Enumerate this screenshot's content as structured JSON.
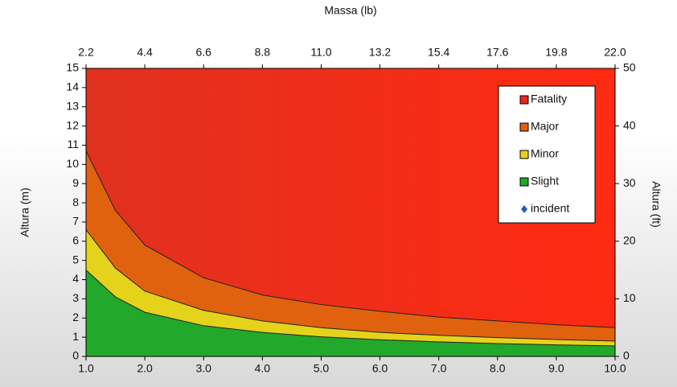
{
  "chart_data": {
    "type": "area",
    "title": "Massa (lb)",
    "y_label": "Altura (m)",
    "y2_label": "Altura (ft)",
    "x": [
      1,
      1.5,
      2,
      3,
      4,
      5,
      6,
      7,
      8,
      9,
      10
    ],
    "xlim": [
      1,
      10
    ],
    "xticks": [
      {
        "value": 1,
        "label": "1.0"
      },
      {
        "value": 2,
        "label": "2.0"
      },
      {
        "value": 3,
        "label": "3.0"
      },
      {
        "value": 4,
        "label": "4.0"
      },
      {
        "value": 5,
        "label": "5.0"
      },
      {
        "value": 6,
        "label": "6.0"
      },
      {
        "value": 7,
        "label": "7.0"
      },
      {
        "value": 8,
        "label": "8.0"
      },
      {
        "value": 9,
        "label": "9.0"
      },
      {
        "value": 10,
        "label": "10.0"
      }
    ],
    "x2lim": [
      2.2,
      22
    ],
    "x2ticks": [
      2.2,
      4.4,
      6.6,
      8.8,
      {
        "value": 11,
        "label": "11.0"
      },
      13.2,
      15.4,
      17.6,
      19.8,
      {
        "value": 22,
        "label": "22.0"
      }
    ],
    "ylim": [
      0,
      15
    ],
    "yticks": [
      0,
      1,
      2,
      3,
      4,
      5,
      6,
      7,
      8,
      9,
      10,
      11,
      12,
      13,
      14,
      15
    ],
    "y2lim": [
      0,
      50
    ],
    "y2ticks": [
      0,
      10,
      20,
      30,
      40,
      50
    ],
    "series": [
      {
        "name": "Fatality",
        "color": "#e8291c"
      },
      {
        "name": "Major",
        "color": "#e0620f",
        "values": [
          10.7,
          7.6,
          5.8,
          4.1,
          3.2,
          2.7,
          2.35,
          2.05,
          1.85,
          1.65,
          1.5
        ]
      },
      {
        "name": "Minor",
        "color": "#e4d31a",
        "values": [
          6.6,
          4.6,
          3.4,
          2.4,
          1.85,
          1.5,
          1.25,
          1.1,
          0.98,
          0.88,
          0.8
        ]
      },
      {
        "name": "Slight",
        "color": "#22a82a",
        "values": [
          4.5,
          3.1,
          2.3,
          1.6,
          1.25,
          1.02,
          0.87,
          0.76,
          0.67,
          0.6,
          0.55
        ]
      },
      {
        "name": "incident",
        "color": "#1f5fb4"
      }
    ],
    "legend": "top-right"
  }
}
